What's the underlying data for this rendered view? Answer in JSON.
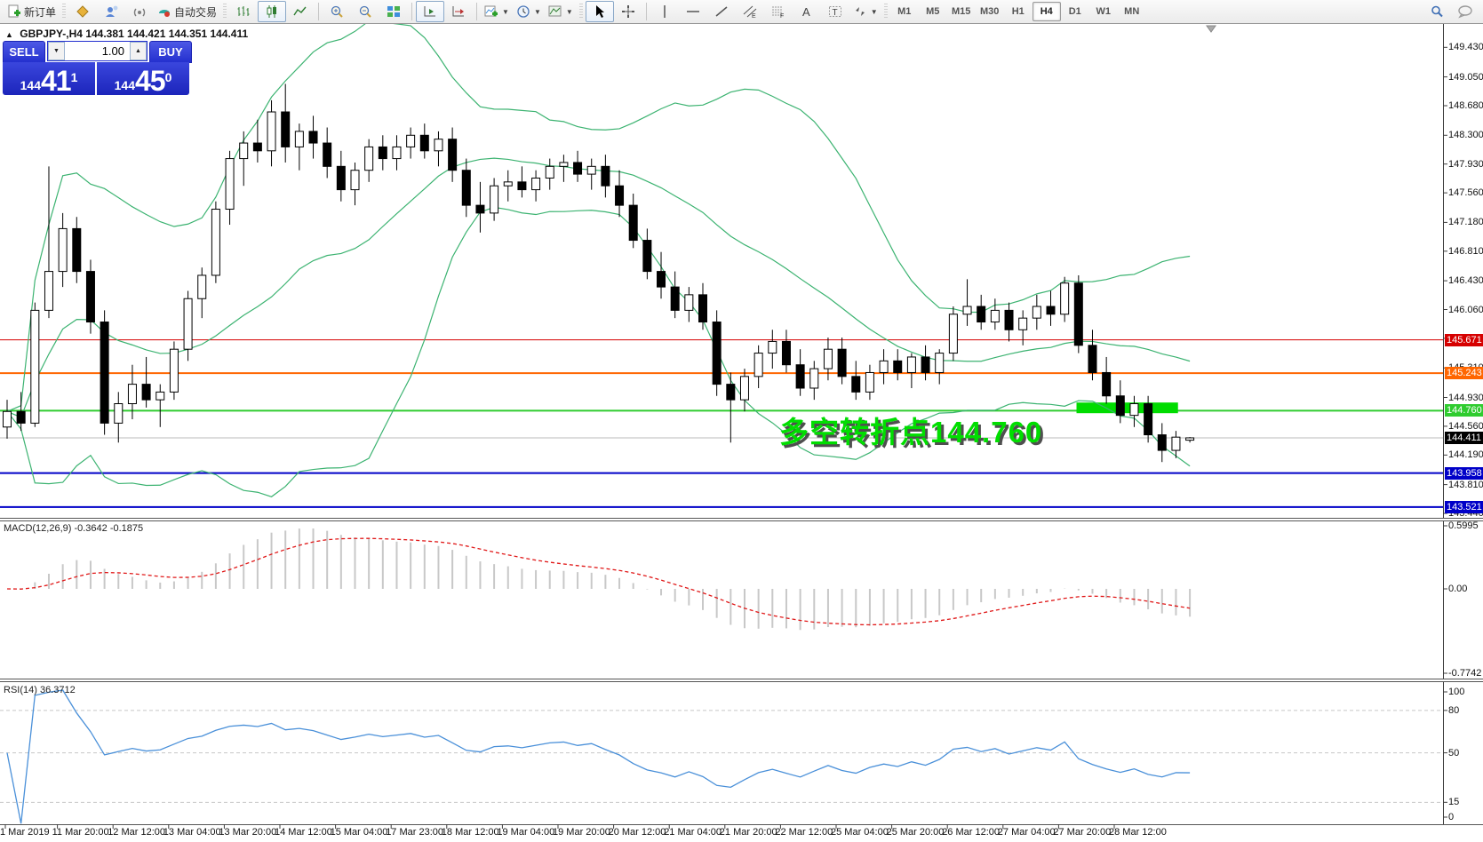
{
  "toolbar": {
    "new_order_label": "新订单",
    "autotrading_label": "自动交易",
    "timeframes": [
      "M1",
      "M5",
      "M15",
      "M30",
      "H1",
      "H4",
      "D1",
      "W1",
      "MN"
    ],
    "active_timeframe": "H4"
  },
  "header": {
    "expander_glyph": "▲",
    "symbol": "GBPJPY-,H4",
    "ohlc": "144.381 144.421 144.351 144.411"
  },
  "trade": {
    "sell_label": "SELL",
    "buy_label": "BUY",
    "volume": "1.00",
    "sell_price_prefix": "144",
    "sell_price_big": "41",
    "sell_price_sup": "1",
    "buy_price_prefix": "144",
    "buy_price_big": "45",
    "buy_price_sup": "0"
  },
  "chart_data": {
    "type": "candlestick",
    "symbol": "GBPJPY-",
    "timeframe": "H4",
    "bull_color": "#ffffff",
    "bear_color": "#000000",
    "candles": [
      [
        144.55,
        144.9,
        144.4,
        144.75
      ],
      [
        144.75,
        145.0,
        144.5,
        144.6
      ],
      [
        144.6,
        146.15,
        144.55,
        146.05
      ],
      [
        146.05,
        147.9,
        145.95,
        146.55
      ],
      [
        146.55,
        147.3,
        146.35,
        147.1
      ],
      [
        147.1,
        147.25,
        146.4,
        146.55
      ],
      [
        146.55,
        146.7,
        145.75,
        145.9
      ],
      [
        145.9,
        146.05,
        144.45,
        144.6
      ],
      [
        144.6,
        145.0,
        144.35,
        144.85
      ],
      [
        144.85,
        145.35,
        144.65,
        145.1
      ],
      [
        145.1,
        145.45,
        144.8,
        144.9
      ],
      [
        144.9,
        145.1,
        144.55,
        145.0
      ],
      [
        145.0,
        145.65,
        144.9,
        145.55
      ],
      [
        145.55,
        146.3,
        145.4,
        146.2
      ],
      [
        146.2,
        146.6,
        145.95,
        146.5
      ],
      [
        146.5,
        147.45,
        146.4,
        147.35
      ],
      [
        147.35,
        148.1,
        147.15,
        148.0
      ],
      [
        148.0,
        148.35,
        147.65,
        148.2
      ],
      [
        148.2,
        148.5,
        147.95,
        148.1
      ],
      [
        148.1,
        148.75,
        147.9,
        148.6
      ],
      [
        148.6,
        148.96,
        147.95,
        148.15
      ],
      [
        148.15,
        148.45,
        147.85,
        148.35
      ],
      [
        148.35,
        148.55,
        148.0,
        148.2
      ],
      [
        148.2,
        148.4,
        147.75,
        147.9
      ],
      [
        147.9,
        148.1,
        147.45,
        147.6
      ],
      [
        147.6,
        147.95,
        147.4,
        147.85
      ],
      [
        147.85,
        148.25,
        147.7,
        148.15
      ],
      [
        148.15,
        148.3,
        147.85,
        148.0
      ],
      [
        148.0,
        148.3,
        147.85,
        148.15
      ],
      [
        148.15,
        148.4,
        148.0,
        148.3
      ],
      [
        148.3,
        148.45,
        148.0,
        148.1
      ],
      [
        148.1,
        148.35,
        147.9,
        148.25
      ],
      [
        148.25,
        148.4,
        147.7,
        147.85
      ],
      [
        147.85,
        148.0,
        147.25,
        147.4
      ],
      [
        147.4,
        147.7,
        147.05,
        147.3
      ],
      [
        147.3,
        147.75,
        147.2,
        147.65
      ],
      [
        147.65,
        147.85,
        147.45,
        147.7
      ],
      [
        147.7,
        147.9,
        147.5,
        147.6
      ],
      [
        147.6,
        147.85,
        147.45,
        147.75
      ],
      [
        147.75,
        148.0,
        147.6,
        147.9
      ],
      [
        147.9,
        148.05,
        147.7,
        147.95
      ],
      [
        147.95,
        148.1,
        147.7,
        147.8
      ],
      [
        147.8,
        148.0,
        147.6,
        147.9
      ],
      [
        147.9,
        148.05,
        147.5,
        147.65
      ],
      [
        147.65,
        147.85,
        147.25,
        147.4
      ],
      [
        147.4,
        147.55,
        146.85,
        146.95
      ],
      [
        146.95,
        147.1,
        146.45,
        146.55
      ],
      [
        146.55,
        146.8,
        146.2,
        146.35
      ],
      [
        146.35,
        146.55,
        145.95,
        146.05
      ],
      [
        146.05,
        146.35,
        145.9,
        146.25
      ],
      [
        146.25,
        146.4,
        145.8,
        145.9
      ],
      [
        145.9,
        146.05,
        144.95,
        145.1
      ],
      [
        145.1,
        145.25,
        144.35,
        144.9
      ],
      [
        144.9,
        145.3,
        144.75,
        145.2
      ],
      [
        145.2,
        145.6,
        145.05,
        145.5
      ],
      [
        145.5,
        145.8,
        145.3,
        145.65
      ],
      [
        145.65,
        145.8,
        145.25,
        145.35
      ],
      [
        145.35,
        145.55,
        144.95,
        145.05
      ],
      [
        145.05,
        145.4,
        144.9,
        145.3
      ],
      [
        145.3,
        145.7,
        145.15,
        145.55
      ],
      [
        145.55,
        145.7,
        145.1,
        145.2
      ],
      [
        145.2,
        145.4,
        144.9,
        145.0
      ],
      [
        145.0,
        145.35,
        144.9,
        145.25
      ],
      [
        145.25,
        145.55,
        145.1,
        145.4
      ],
      [
        145.4,
        145.55,
        145.15,
        145.25
      ],
      [
        145.25,
        145.5,
        145.05,
        145.45
      ],
      [
        145.45,
        145.6,
        145.15,
        145.25
      ],
      [
        145.25,
        145.55,
        145.1,
        145.5
      ],
      [
        145.5,
        146.1,
        145.4,
        146.0
      ],
      [
        146.0,
        146.45,
        145.85,
        146.1
      ],
      [
        146.1,
        146.25,
        145.8,
        145.9
      ],
      [
        145.9,
        146.2,
        145.8,
        146.05
      ],
      [
        146.05,
        146.15,
        145.65,
        145.8
      ],
      [
        145.8,
        146.05,
        145.6,
        145.95
      ],
      [
        145.95,
        146.25,
        145.8,
        146.1
      ],
      [
        146.1,
        146.3,
        145.85,
        146.0
      ],
      [
        146.0,
        146.48,
        145.9,
        146.4
      ],
      [
        146.4,
        146.5,
        145.5,
        145.6
      ],
      [
        145.6,
        145.8,
        145.15,
        145.25
      ],
      [
        145.25,
        145.45,
        144.85,
        144.95
      ],
      [
        144.95,
        145.15,
        144.6,
        144.7
      ],
      [
        144.7,
        144.95,
        144.55,
        144.85
      ],
      [
        144.85,
        144.95,
        144.35,
        144.45
      ],
      [
        144.45,
        144.6,
        144.1,
        144.25
      ],
      [
        144.25,
        144.5,
        144.15,
        144.42
      ],
      [
        144.381,
        144.421,
        144.351,
        144.411
      ]
    ],
    "bollinger": {
      "period": 20,
      "deviation": 2,
      "color": "#3cb371"
    },
    "y_ticks": [
      "149.430",
      "149.050",
      "148.680",
      "148.300",
      "147.930",
      "147.560",
      "147.180",
      "146.810",
      "146.430",
      "146.060",
      "145.690",
      "145.310",
      "144.930",
      "144.560",
      "144.190",
      "143.810",
      "143.440"
    ],
    "hlines": [
      {
        "price": 145.671,
        "label": "145.671",
        "color": "#d60000",
        "width": 1
      },
      {
        "price": 145.243,
        "label": "145.243",
        "color": "#ff6600",
        "width": 2
      },
      {
        "price": 144.76,
        "label": "144.760",
        "color": "#2fcc2f",
        "width": 2
      },
      {
        "price": 143.958,
        "label": "143.958",
        "color": "#0000c8",
        "width": 2
      },
      {
        "price": 143.521,
        "label": "143.521",
        "color": "#0000c8",
        "width": 2
      }
    ],
    "current_price": {
      "price": 144.411,
      "label": "144.411",
      "line_color": "#bbbbbb",
      "badge_bg": "#000000"
    },
    "highlight": {
      "bar_from": 77.3,
      "bar_to": 83.7,
      "price_top": 144.865,
      "price_bottom": 144.728,
      "color": "#00dc00"
    },
    "annotation": {
      "text": "多空转折点144.760",
      "color": "#00de00"
    },
    "time_labels": [
      "1 Mar 2019",
      "11 Mar 20:00",
      "12 Mar 12:00",
      "13 Mar 04:00",
      "13 Mar 20:00",
      "14 Mar 12:00",
      "15 Mar 04:00",
      "17 Mar 23:00",
      "18 Mar 12:00",
      "19 Mar 04:00",
      "19 Mar 20:00",
      "20 Mar 12:00",
      "21 Mar 04:00",
      "21 Mar 20:00",
      "22 Mar 12:00",
      "25 Mar 04:00",
      "25 Mar 20:00",
      "26 Mar 12:00",
      "27 Mar 04:00",
      "27 Mar 20:00",
      "28 Mar 12:00"
    ]
  },
  "macd": {
    "full_label": "MACD(12,26,9) -0.3642 -0.1875",
    "params": [
      12,
      26,
      9
    ],
    "value": "-0.3642",
    "signal_value": "-0.1875",
    "scale_labels": [
      "0.5995",
      "0.00",
      "-0.7742"
    ],
    "histogram_color": "#c8c8c8",
    "signal_color": "#e01818"
  },
  "rsi": {
    "full_label": "RSI(14) 36.3712",
    "period": 14,
    "value": "36.3712",
    "levels": [
      80,
      50,
      15
    ],
    "scale_labels": [
      "100",
      "80",
      "50",
      "15",
      "0"
    ],
    "line_color": "#4a90d9",
    "level_color": "#c8c8c8"
  }
}
